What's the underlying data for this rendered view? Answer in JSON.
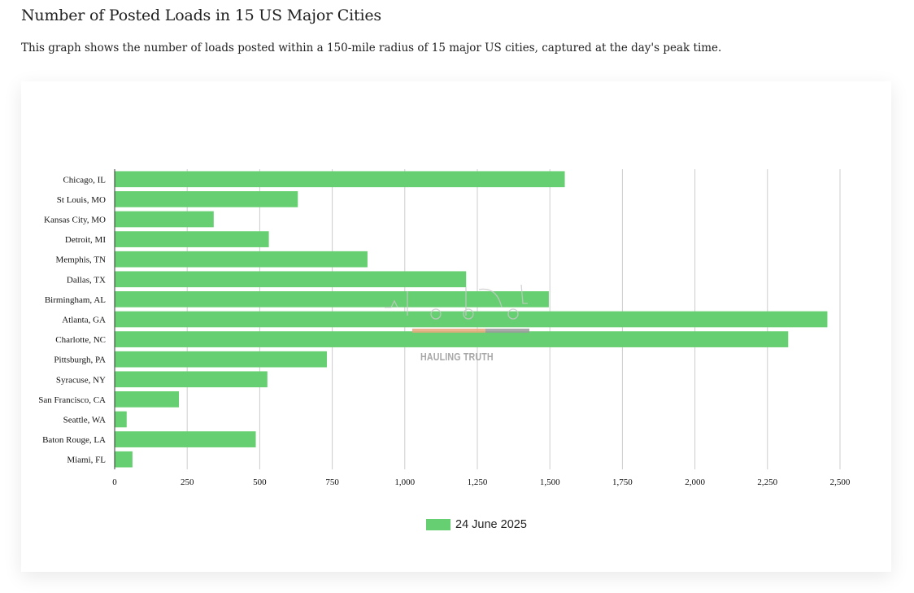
{
  "page": {
    "title": "Number of Posted Loads in 15 US Major Cities",
    "description": "This graph shows the number of loads posted within a 150-mile radius of 15 major US cities, captured at the day's peak time."
  },
  "watermark": {
    "text": "HAULING TRUTH"
  },
  "colors": {
    "bar": "#66cf71",
    "grid": "#cccccc",
    "axis": "#333333"
  },
  "chart_data": {
    "type": "bar",
    "orientation": "horizontal",
    "categories": [
      "Chicago, IL",
      "St Louis, MO",
      "Kansas City, MO",
      "Detroit, MI",
      "Memphis, TN",
      "Dallas, TX",
      "Birmingham, AL",
      "Atlanta, GA",
      "Charlotte, NC",
      "Pittsburgh, PA",
      "Syracuse, NY",
      "San Francisco, CA",
      "Seattle, WA",
      "Baton Rouge, LA",
      "Miami, FL"
    ],
    "series": [
      {
        "name": "24 June 2025",
        "values": [
          1550,
          630,
          340,
          530,
          870,
          1210,
          1495,
          2455,
          2320,
          730,
          525,
          220,
          40,
          485,
          60
        ]
      }
    ],
    "xlim": [
      0,
      2500
    ],
    "x_ticks": [
      0,
      250,
      500,
      750,
      1000,
      1250,
      1500,
      1750,
      2000,
      2250,
      2500
    ],
    "x_tick_labels": [
      "0",
      "250",
      "500",
      "750",
      "1,000",
      "1,250",
      "1,500",
      "1,750",
      "2,000",
      "2,250",
      "2,500"
    ],
    "grid": true,
    "legend_position": "bottom"
  }
}
